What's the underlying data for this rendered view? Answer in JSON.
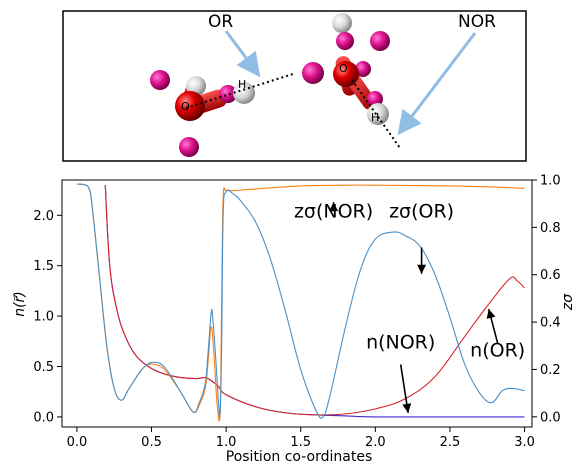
{
  "molecule_panel": {
    "labels": {
      "or": "OR",
      "nor": "NOR",
      "o_left": "O",
      "h_left": "H",
      "o_right": "O",
      "h_right": "H"
    }
  },
  "chart_data": {
    "type": "line",
    "xlabel": "Position co-ordinates",
    "ylabel_left": "n(r⃗)",
    "ylabel_right": "zσ",
    "xlim": [
      -0.1,
      3.05
    ],
    "ylim_left": [
      -0.1,
      2.35
    ],
    "ylim_right": [
      -0.043,
      1.0
    ],
    "xticks": [
      0.0,
      0.5,
      1.0,
      1.5,
      2.0,
      2.5,
      3.0
    ],
    "xtick_labels": [
      "0.0",
      "0.5",
      "1.0",
      "1.5",
      "2.0",
      "2.5",
      "3.0"
    ],
    "yticks_left": [
      0.0,
      0.5,
      1.0,
      1.5,
      2.0
    ],
    "ytick_labels_left": [
      "0.0",
      "0.5",
      "1.0",
      "1.5",
      "2.0"
    ],
    "yticks_right": [
      0.0,
      0.2,
      0.4,
      0.6,
      0.8,
      1.0
    ],
    "ytick_labels_right": [
      "0.0",
      "0.2",
      "0.4",
      "0.6",
      "0.8",
      "1.0"
    ],
    "series": [
      {
        "name": "n(NOR)",
        "axis": "left",
        "color": "#3a2bd1",
        "x": [
          0.19,
          0.22,
          0.27,
          0.33,
          0.4,
          0.5,
          0.6,
          0.7,
          0.8,
          0.86,
          0.9,
          0.95,
          1.0,
          1.2,
          1.4,
          1.6,
          1.8,
          2.0,
          2.5,
          3.0
        ],
        "y": [
          2.3,
          1.5,
          1.05,
          0.78,
          0.6,
          0.48,
          0.42,
          0.39,
          0.38,
          0.39,
          0.36,
          0.3,
          0.22,
          0.1,
          0.04,
          0.02,
          0.01,
          0.0,
          0.0,
          0.0
        ]
      },
      {
        "name": "n(OR)",
        "axis": "left",
        "color": "#d62728",
        "x": [
          0.19,
          0.22,
          0.27,
          0.33,
          0.4,
          0.5,
          0.6,
          0.7,
          0.8,
          0.86,
          0.9,
          0.95,
          1.0,
          1.2,
          1.4,
          1.6,
          1.8,
          2.0,
          2.2,
          2.4,
          2.6,
          2.75,
          2.9,
          2.95,
          3.0
        ],
        "y": [
          2.3,
          1.5,
          1.05,
          0.78,
          0.6,
          0.48,
          0.42,
          0.39,
          0.38,
          0.39,
          0.36,
          0.3,
          0.22,
          0.1,
          0.04,
          0.02,
          0.03,
          0.08,
          0.18,
          0.4,
          0.8,
          1.1,
          1.37,
          1.35,
          1.28
        ]
      },
      {
        "name": "zσ(NOR)",
        "axis": "right",
        "color": "#ff7f0e",
        "x": [
          0.0,
          0.05,
          0.08,
          0.1,
          0.15,
          0.2,
          0.25,
          0.3,
          0.35,
          0.45,
          0.53,
          0.6,
          0.7,
          0.78,
          0.82,
          0.86,
          0.88,
          0.9,
          0.92,
          0.94,
          0.96,
          0.97,
          0.98,
          1.0,
          1.05,
          1.2,
          1.5,
          1.8,
          2.0,
          2.5,
          2.8,
          3.0
        ],
        "y": [
          0.983,
          0.98,
          0.965,
          0.9,
          0.6,
          0.3,
          0.12,
          0.07,
          0.12,
          0.21,
          0.22,
          0.19,
          0.1,
          0.02,
          0.05,
          0.12,
          0.24,
          0.38,
          0.25,
          0.05,
          0.02,
          0.5,
          0.92,
          0.955,
          0.955,
          0.962,
          0.975,
          0.978,
          0.978,
          0.975,
          0.97,
          0.965
        ]
      },
      {
        "name": "zσ(OR)",
        "axis": "right",
        "color": "#4a90c8",
        "x": [
          0.0,
          0.05,
          0.08,
          0.1,
          0.15,
          0.2,
          0.25,
          0.3,
          0.35,
          0.45,
          0.53,
          0.6,
          0.7,
          0.78,
          0.82,
          0.86,
          0.88,
          0.9,
          0.91,
          0.93,
          0.95,
          0.96,
          0.97,
          0.98,
          1.0,
          1.05,
          1.1,
          1.2,
          1.3,
          1.4,
          1.5,
          1.6,
          1.65,
          1.7,
          1.8,
          1.9,
          2.0,
          2.12,
          2.2,
          2.3,
          2.4,
          2.5,
          2.6,
          2.7,
          2.78,
          2.85,
          2.92,
          3.0
        ],
        "y": [
          0.983,
          0.98,
          0.965,
          0.9,
          0.6,
          0.3,
          0.12,
          0.07,
          0.12,
          0.21,
          0.23,
          0.2,
          0.1,
          0.02,
          0.06,
          0.14,
          0.28,
          0.44,
          0.42,
          0.25,
          0.05,
          0.02,
          0.3,
          0.85,
          0.95,
          0.94,
          0.91,
          0.82,
          0.66,
          0.44,
          0.2,
          0.03,
          0.0,
          0.1,
          0.38,
          0.62,
          0.75,
          0.78,
          0.765,
          0.72,
          0.6,
          0.42,
          0.22,
          0.1,
          0.06,
          0.11,
          0.12,
          0.11
        ]
      }
    ],
    "annotations": [
      {
        "text": "zσ(NOR)",
        "x": 1.72,
        "y_left": 1.98
      },
      {
        "text": "zσ(OR)",
        "x": 2.31,
        "y_left": 1.98
      },
      {
        "text": "n(NOR)",
        "x": 2.17,
        "y_left": 0.68
      },
      {
        "text": "n(OR)",
        "x": 2.82,
        "y_left": 0.6
      }
    ]
  }
}
